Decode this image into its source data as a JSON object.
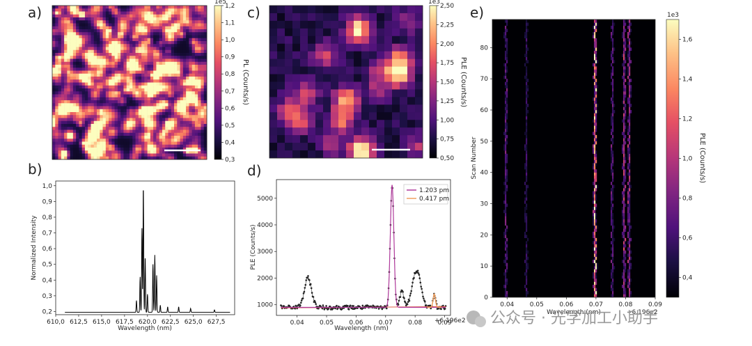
{
  "watermark": "公众号 · 光学加工小助手",
  "panels": {
    "a": {
      "label": "a)",
      "cbar_label": "PL (Counts/s)",
      "cbar_exp": "1e5",
      "cbar_ticks": [
        "0,3",
        "0,4",
        "0,5",
        "0,6",
        "0,7",
        "0,8",
        "0,9",
        "1,0",
        "1,1",
        "1,2"
      ],
      "cbar_range": [
        0.3,
        1.2
      ]
    },
    "b": {
      "label": "b)"
    },
    "c": {
      "label": "c)",
      "cbar_label": "PLE (Counts/s)",
      "cbar_exp": "1e3",
      "cbar_ticks": [
        "0,50",
        "0,75",
        "1,00",
        "1,25",
        "1,50",
        "1,75",
        "2,00",
        "2,25",
        "2,50"
      ],
      "cbar_range": [
        0.5,
        2.5
      ]
    },
    "d": {
      "label": "d)"
    },
    "e": {
      "label": "e)",
      "cbar_label": "PLE (Counts/s)",
      "cbar_exp": "1e3",
      "cbar_ticks": [
        "0,4",
        "0,6",
        "0,8",
        "1,0",
        "1,2",
        "1,4",
        "1,6"
      ],
      "cbar_range": [
        0.3,
        1.7
      ]
    }
  },
  "chart_data": [
    {
      "id": "a",
      "type": "heatmap",
      "title": "",
      "xlabel": "",
      "ylabel": "",
      "colorbar": {
        "label": "PL (Counts/s)",
        "scale": "1e5",
        "range": [
          0.3,
          1.2
        ]
      }
    },
    {
      "id": "b",
      "type": "line",
      "xlabel": "Wavelength (nm)",
      "ylabel": "Normalized Intensity",
      "xlim": [
        610.0,
        629.5
      ],
      "ylim": [
        0.18,
        1.03
      ],
      "xticks": [
        "610,0",
        "612,5",
        "615,0",
        "617,5",
        "620,0",
        "622,5",
        "625,0",
        "627,5"
      ],
      "yticks": [
        "0,2",
        "0,3",
        "0,4",
        "0,5",
        "0,6",
        "0,7",
        "0,8",
        "0,9",
        "1,0"
      ],
      "baseline": 0.195,
      "peaks": [
        [
          618.8,
          0.27
        ],
        [
          619.2,
          0.42
        ],
        [
          619.4,
          0.73
        ],
        [
          619.55,
          1.0
        ],
        [
          619.75,
          0.55
        ],
        [
          620.0,
          0.31
        ],
        [
          620.6,
          0.5
        ],
        [
          620.8,
          0.56
        ],
        [
          621.0,
          0.43
        ],
        [
          621.4,
          0.24
        ],
        [
          622.2,
          0.23
        ],
        [
          623.4,
          0.23
        ],
        [
          624.7,
          0.22
        ],
        [
          627.3,
          0.21
        ]
      ]
    },
    {
      "id": "c",
      "type": "heatmap",
      "colorbar": {
        "label": "PLE (Counts/s)",
        "scale": "1e3",
        "range": [
          0.5,
          2.5
        ]
      }
    },
    {
      "id": "d",
      "type": "scatter",
      "xlabel": "Wavelength (nm)",
      "ylabel": "PLE (Counts/s)",
      "x_offset_label": "+6.196e2",
      "xlim": [
        0.033,
        0.092
      ],
      "ylim": [
        600,
        5700
      ],
      "xticks": [
        "0.04",
        "0.05",
        "0.06",
        "0.07",
        "0.08",
        "0.09"
      ],
      "yticks": [
        "1000",
        "2000",
        "3000",
        "4000",
        "5000"
      ],
      "legend": {
        "position": "top-right",
        "entries": [
          "1.203 pm",
          "0.417 pm"
        ]
      },
      "series": [
        {
          "name": "data",
          "baseline": 900,
          "peaks": [
            [
              0.0437,
              2000,
              0.0012
            ],
            [
              0.0722,
              5500,
              0.0006
            ],
            [
              0.0755,
              1500,
              0.0007
            ],
            [
              0.0805,
              2300,
              0.0014
            ],
            [
              0.0865,
              1400,
              0.0004
            ]
          ]
        },
        {
          "name": "1.203 pm",
          "color": "#b03a9c"
        },
        {
          "name": "0.417 pm",
          "color": "#f0a060"
        }
      ]
    },
    {
      "id": "e",
      "type": "heatmap",
      "xlabel": "Wavelength (nm)",
      "ylabel": "Scan Number",
      "x_offset_label": "+6.196e2",
      "xlim": [
        0.035,
        0.09
      ],
      "ylim": [
        0,
        89
      ],
      "xticks": [
        "0.04",
        "0.05",
        "0.06",
        "0.07",
        "0.08",
        "0.09"
      ],
      "yticks": [
        "0",
        "10",
        "20",
        "30",
        "40",
        "50",
        "60",
        "70",
        "80"
      ],
      "lines": [
        [
          0.0396,
          0.35
        ],
        [
          0.0465,
          0.22
        ],
        [
          0.0697,
          1.0
        ],
        [
          0.0755,
          0.35
        ],
        [
          0.0795,
          0.55
        ],
        [
          0.0812,
          0.5
        ]
      ],
      "colorbar": {
        "label": "PLE (Counts/s)",
        "scale": "1e3",
        "range": [
          0.3,
          1.7
        ]
      }
    }
  ]
}
